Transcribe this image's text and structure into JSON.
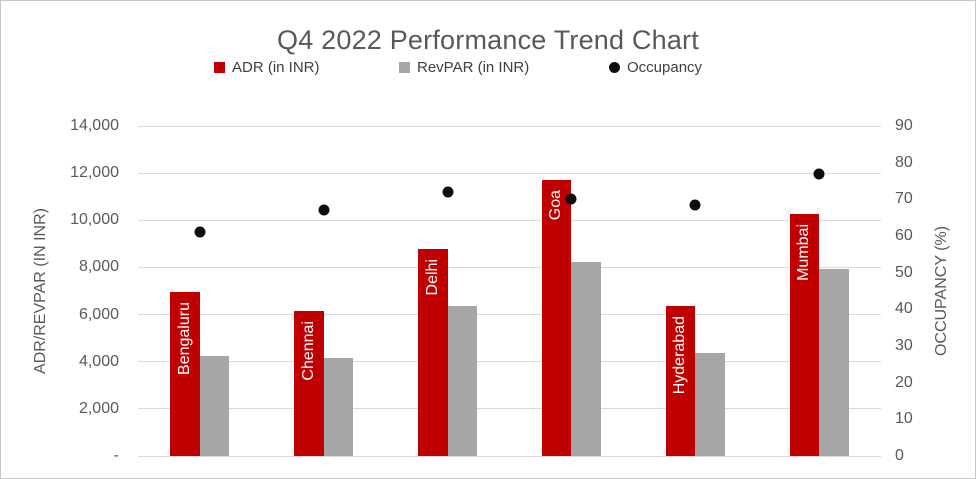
{
  "title": "Q4 2022 Performance Trend Chart",
  "legend": {
    "items": [
      {
        "label": "ADR (in INR)",
        "marker": "square-icon",
        "color": "#c00000"
      },
      {
        "label": "RevPAR (in INR)",
        "marker": "square-icon",
        "color": "#a6a6a6"
      },
      {
        "label": "Occupancy",
        "marker": "circle-icon",
        "color": "#0d0d0d"
      }
    ]
  },
  "chart_data": {
    "type": "bar",
    "subtype": "combo-clustered-bar-with-scatter",
    "title": "Q4 2022 Performance Trend Chart",
    "categories": [
      "Bengaluru",
      "Chennai",
      "Delhi",
      "Goa",
      "Hyderabad",
      "Mumbai"
    ],
    "series": [
      {
        "name": "ADR (in INR)",
        "type": "bar",
        "axis": "left",
        "color": "#c00000",
        "values": [
          6950,
          6150,
          8800,
          11700,
          6350,
          10250
        ]
      },
      {
        "name": "RevPAR (in INR)",
        "type": "bar",
        "axis": "left",
        "color": "#a6a6a6",
        "values": [
          4250,
          4150,
          6350,
          8250,
          4350,
          7950
        ]
      },
      {
        "name": "Occupancy",
        "type": "scatter",
        "axis": "right",
        "color": "#0d0d0d",
        "values": [
          61,
          67,
          72,
          70,
          68.5,
          77
        ]
      }
    ],
    "left_axis": {
      "title": "ADR/REVPAR (IN INR)",
      "min": 0,
      "max": 14000,
      "step": 2000,
      "tick_labels": [
        "-",
        "2,000",
        "4,000",
        "6,000",
        "8,000",
        "10,000",
        "12,000",
        "14,000"
      ]
    },
    "right_axis": {
      "title": "OCCUPANCY (%)",
      "min": 0,
      "max": 90,
      "step": 10,
      "tick_labels": [
        "0",
        "10",
        "20",
        "30",
        "40",
        "50",
        "60",
        "70",
        "80",
        "90"
      ]
    },
    "grid": true,
    "legend_position": "top",
    "category_labels_inside_bars": true
  },
  "colors": {
    "adr_bar": "#c00000",
    "revpar_bar": "#a6a6a6",
    "occupancy_dot": "#0d0d0d",
    "gridline": "#d9d9d9",
    "axis_text": "#595959",
    "legend_text": "#404040",
    "category_label_text": "#ffffff",
    "frame_border": "#c9c7c7",
    "background": "#ffffff"
  }
}
